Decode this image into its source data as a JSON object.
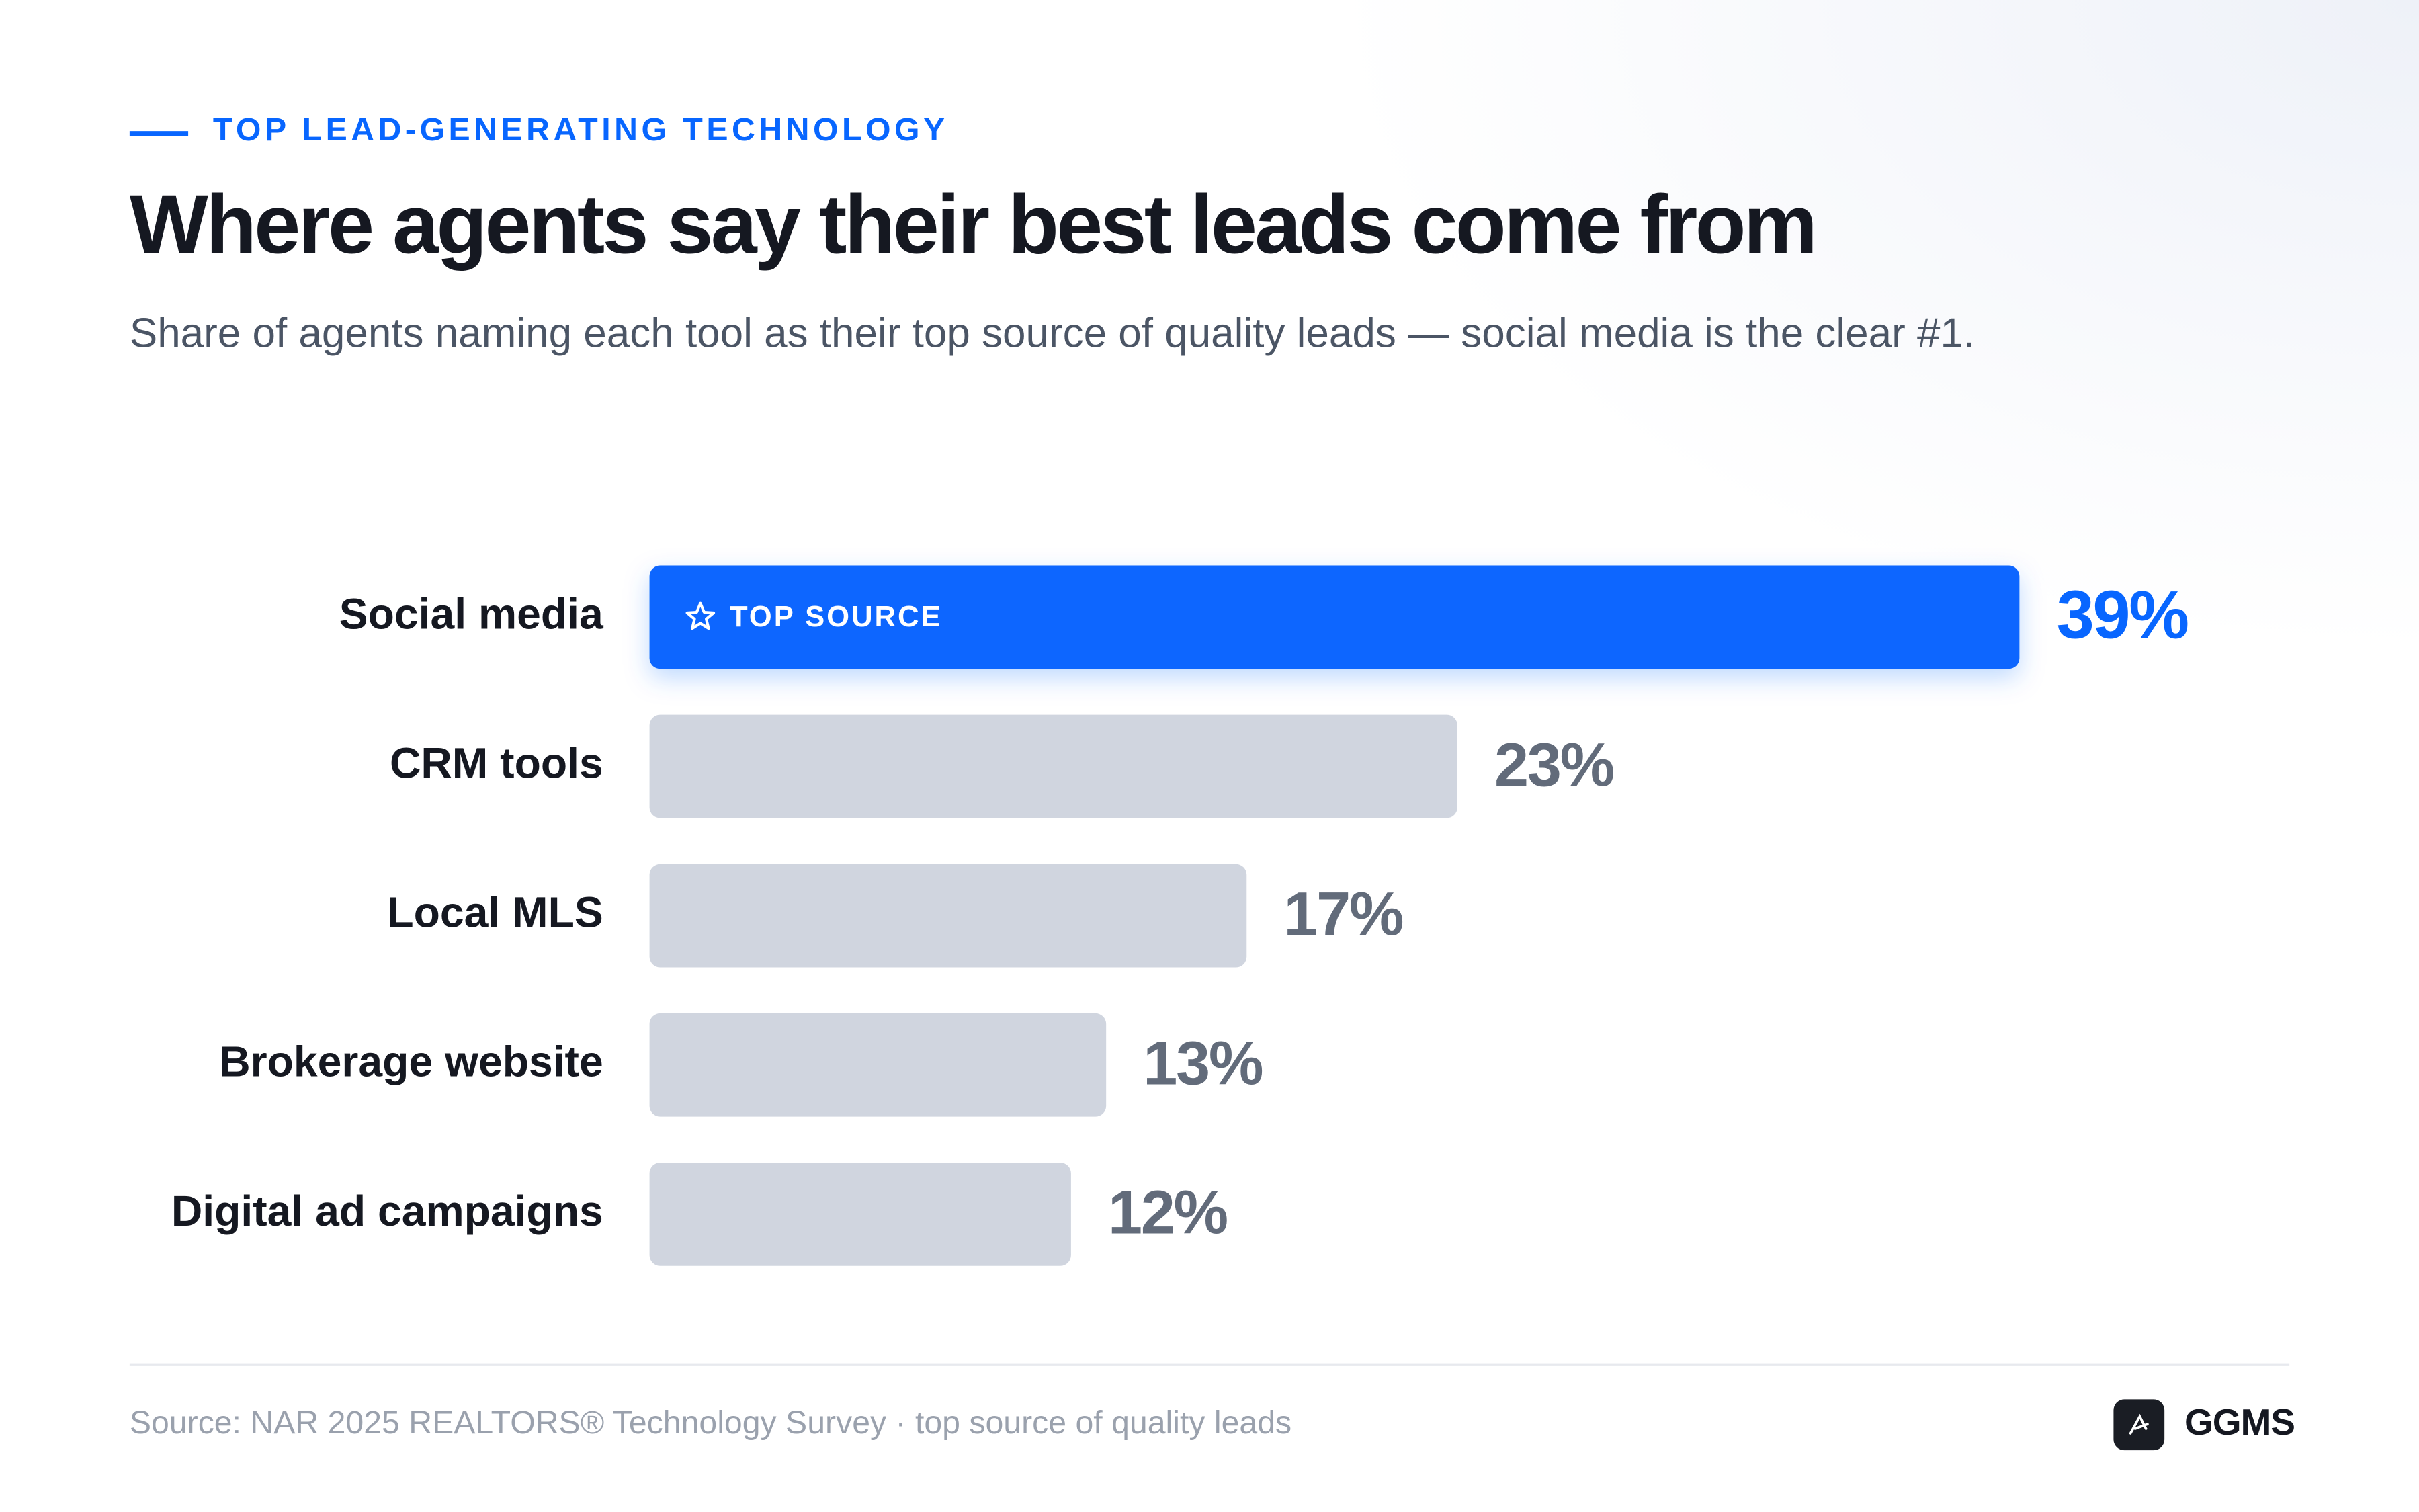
{
  "chart_data": {
    "type": "bar",
    "orientation": "horizontal",
    "eyebrow": "TOP LEAD-GENERATING TECHNOLOGY",
    "title": "Where agents say their best leads come from",
    "subtitle": "Share of agents naming each tool as their top source of quality leads — social media is the clear #1.",
    "categories": [
      "Social media",
      "CRM tools",
      "Local MLS",
      "Brokerage website",
      "Digital ad campaigns"
    ],
    "values": [
      39,
      23,
      17,
      13,
      12
    ],
    "value_labels": [
      "39%",
      "23%",
      "17%",
      "13%",
      "12%"
    ],
    "colors": [
      "#0866ff",
      "#d0d5df",
      "#d0d5df",
      "#d0d5df",
      "#d0d5df"
    ],
    "value_label_colors": [
      "#0866ff",
      "#626b7a",
      "#626b7a",
      "#626b7a",
      "#626b7a"
    ],
    "badges": [
      "TOP SOURCE",
      null,
      null,
      null,
      null
    ],
    "source": "Source: NAR 2025 REALTORS® Technology Survey · top source of quality leads",
    "brand": "GGMS"
  }
}
